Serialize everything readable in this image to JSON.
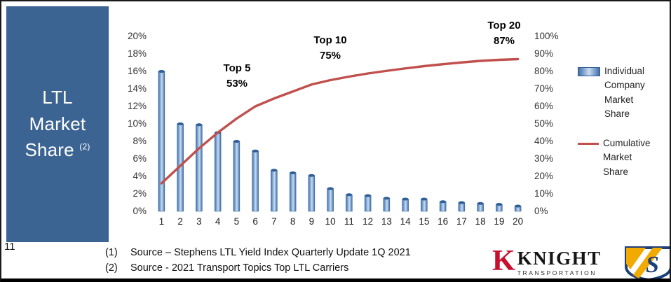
{
  "page": {
    "number": "11"
  },
  "sidebar": {
    "lines": [
      "LTL",
      "Market",
      "Share"
    ],
    "superscript": "(2)"
  },
  "chart_data": {
    "type": "pareto (bar + cumulative line)",
    "title": "LTL Market Share",
    "categories": [
      "1",
      "2",
      "3",
      "4",
      "5",
      "6",
      "7",
      "8",
      "9",
      "10",
      "11",
      "12",
      "13",
      "14",
      "15",
      "16",
      "17",
      "18",
      "19",
      "20"
    ],
    "series": [
      {
        "name": "Individual Company Market Share",
        "type": "bar",
        "axis": "left",
        "values": [
          16.0,
          10.0,
          9.9,
          9.0,
          8.0,
          6.9,
          4.7,
          4.4,
          4.1,
          2.6,
          1.9,
          1.8,
          1.5,
          1.4,
          1.4,
          1.1,
          1.0,
          0.9,
          0.8,
          0.6
        ]
      },
      {
        "name": "Cumulative Market Share",
        "type": "line",
        "axis": "right",
        "values": [
          16,
          26,
          36,
          45,
          53,
          60,
          64.5,
          68.5,
          72.5,
          75,
          77,
          78.8,
          80.3,
          81.7,
          83,
          84.1,
          85.1,
          86,
          86.6,
          87
        ]
      }
    ],
    "left_axis": {
      "min": 0,
      "max": 20,
      "step": 2,
      "suffix": "%"
    },
    "right_axis": {
      "min": 0,
      "max": 100,
      "step": 10,
      "suffix": "%"
    },
    "annotations": [
      {
        "label": "Top 5",
        "value": "53%"
      },
      {
        "label": "Top 10",
        "value": "75%"
      },
      {
        "label": "Top 20",
        "value": "87%"
      }
    ],
    "grid": "off",
    "legend_position": "right",
    "colors": {
      "bar": "#4f81bd",
      "bar_light": "#c9dcf0",
      "bar_dark": "#2f5e97",
      "line": "#c0504d",
      "panel": "#3c6493"
    }
  },
  "legend": {
    "items": [
      {
        "label": "Individual Company Market Share",
        "swatch": "bar"
      },
      {
        "label": "Cumulative Market Share",
        "swatch": "line"
      }
    ]
  },
  "footnotes": [
    {
      "marker": "(1)",
      "text": "Source – Stephens LTL Yield Index Quarterly Update 1Q 2021"
    },
    {
      "marker": "(2)",
      "text": "Source - 2021 Transport Topics Top LTL Carriers"
    }
  ],
  "logos": {
    "knight": {
      "mark": "K",
      "name": "KNIGHT",
      "sub": "TRANSPORTATION"
    },
    "shield": {
      "letter": "S"
    }
  }
}
